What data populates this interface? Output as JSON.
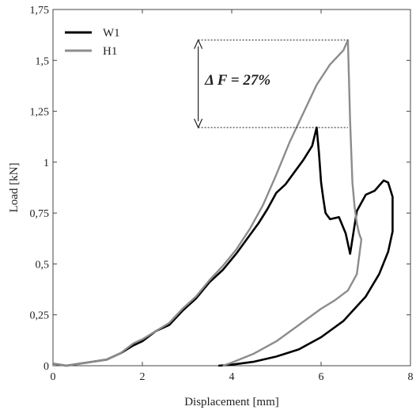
{
  "chart_data": {
    "type": "line",
    "xlabel": "Displacement [mm]",
    "ylabel": "Load [kN]",
    "xlim": [
      0,
      8
    ],
    "ylim": [
      0,
      1.75
    ],
    "x_ticks": [
      {
        "value": 0,
        "label": "0"
      },
      {
        "value": 2,
        "label": "2"
      },
      {
        "value": 4,
        "label": "4"
      },
      {
        "value": 6,
        "label": "6"
      },
      {
        "value": 8,
        "label": "8"
      }
    ],
    "y_ticks": [
      {
        "value": 0,
        "label": "0"
      },
      {
        "value": 0.25,
        "label": "0,25"
      },
      {
        "value": 0.5,
        "label": "0,5"
      },
      {
        "value": 0.75,
        "label": "0,75"
      },
      {
        "value": 1,
        "label": "1"
      },
      {
        "value": 1.25,
        "label": "1,25"
      },
      {
        "value": 1.5,
        "label": "1,5"
      },
      {
        "value": 1.75,
        "label": "1,75"
      }
    ],
    "grid": false,
    "legend_position": "top-left",
    "series": [
      {
        "name": "W1",
        "color": "#000000",
        "x": [
          0,
          0.3,
          0.6,
          0.9,
          1.2,
          1.5,
          1.8,
          2.0,
          2.3,
          2.6,
          2.9,
          3.2,
          3.5,
          3.8,
          4.1,
          4.4,
          4.6,
          4.8,
          5.0,
          5.2,
          5.4,
          5.6,
          5.8,
          5.9,
          5.95,
          6.0,
          6.05,
          6.1,
          6.2,
          6.4,
          6.55,
          6.65,
          6.8,
          7.0,
          7.2,
          7.4,
          7.5,
          7.6,
          7.6,
          7.5,
          7.3,
          7.0,
          6.5,
          6.0,
          5.5,
          5.0,
          4.5,
          4.0,
          3.7
        ],
        "y": [
          0.01,
          0.0,
          0.01,
          0.02,
          0.03,
          0.06,
          0.1,
          0.12,
          0.17,
          0.2,
          0.27,
          0.33,
          0.41,
          0.47,
          0.55,
          0.64,
          0.7,
          0.77,
          0.85,
          0.89,
          0.95,
          1.01,
          1.08,
          1.17,
          1.05,
          0.9,
          0.82,
          0.75,
          0.72,
          0.73,
          0.65,
          0.55,
          0.76,
          0.84,
          0.86,
          0.91,
          0.9,
          0.83,
          0.66,
          0.56,
          0.45,
          0.34,
          0.22,
          0.14,
          0.08,
          0.045,
          0.02,
          0.005,
          0.0
        ]
      },
      {
        "name": "H1",
        "color": "#8c8c8c",
        "x": [
          0,
          0.3,
          0.6,
          0.9,
          1.2,
          1.5,
          1.8,
          2.0,
          2.3,
          2.6,
          2.9,
          3.2,
          3.5,
          3.8,
          4.1,
          4.4,
          4.7,
          5.0,
          5.3,
          5.6,
          5.9,
          6.2,
          6.5,
          6.6,
          6.65,
          6.7,
          6.75,
          6.8,
          6.85,
          6.9,
          6.8,
          6.6,
          6.3,
          6.0,
          5.5,
          5.0,
          4.5,
          4.0,
          3.8
        ],
        "y": [
          0.01,
          0.0,
          0.01,
          0.02,
          0.03,
          0.06,
          0.11,
          0.13,
          0.17,
          0.21,
          0.28,
          0.34,
          0.42,
          0.49,
          0.57,
          0.67,
          0.79,
          0.94,
          1.1,
          1.24,
          1.38,
          1.48,
          1.55,
          1.6,
          1.2,
          0.9,
          0.78,
          0.7,
          0.65,
          0.62,
          0.45,
          0.37,
          0.32,
          0.28,
          0.2,
          0.12,
          0.06,
          0.015,
          0.0
        ]
      }
    ],
    "annotations": [
      {
        "type": "text",
        "text": "Δ F = 27%",
        "x": 3.4,
        "y": 1.38
      },
      {
        "type": "bracket",
        "x": 3.25,
        "y1": 1.6,
        "y2": 1.17,
        "x_end": 6.6
      }
    ]
  }
}
